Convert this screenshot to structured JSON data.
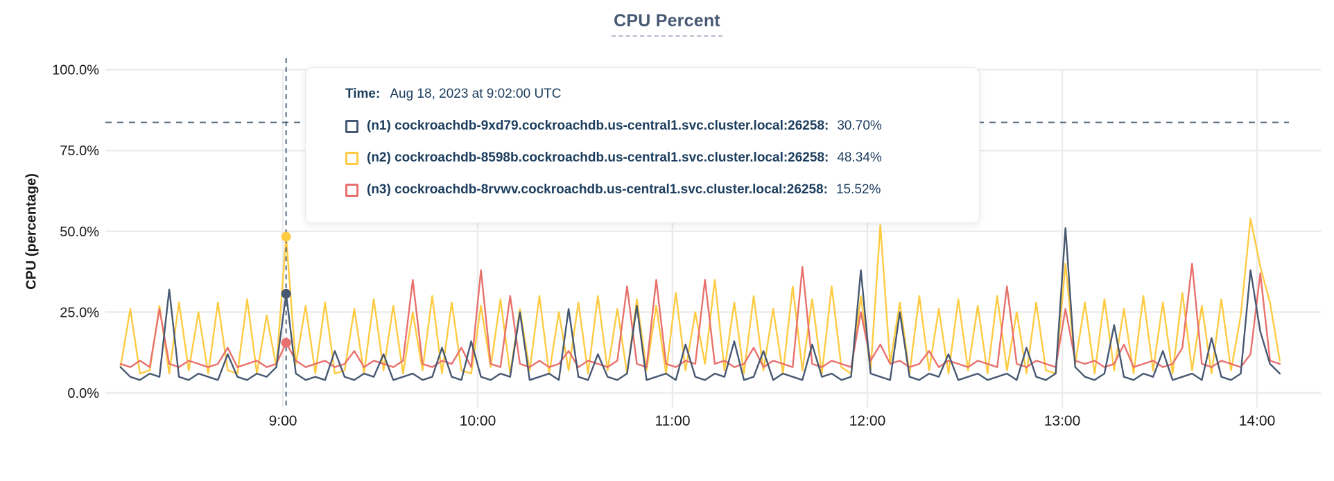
{
  "title": "CPU Percent",
  "y_axis_label": "CPU (percentage)",
  "tooltip": {
    "time_label": "Time:",
    "time_value": "Aug 18, 2023 at 9:02:00 UTC",
    "rows": [
      {
        "name": "(n1) cockroachdb-9xd79.cockroachdb.us-central1.svc.cluster.local:26258:",
        "value": "30.70%",
        "color": "#475872"
      },
      {
        "name": "(n2) cockroachdb-8598b.cockroachdb.us-central1.svc.cluster.local:26258:",
        "value": "48.34%",
        "color": "#FECB42"
      },
      {
        "name": "(n3) cockroachdb-8rvwv.cockroachdb.us-central1.svc.cluster.local:26258:",
        "value": "15.52%",
        "color": "#E8716D"
      }
    ]
  },
  "colors": {
    "grid": "#ececec",
    "tick_text": "#1a1a1a",
    "guide_dash": "#53687e",
    "title": "#475872"
  },
  "chart_data": {
    "type": "line",
    "title": "CPU Percent",
    "xlabel": "",
    "ylabel": "CPU (percentage)",
    "ylim": [
      0,
      100
    ],
    "grid": true,
    "legend_position": "tooltip-overlay",
    "x_start_time": "8:10",
    "x_end_time": "14:07",
    "x_step_minutes": 3,
    "x_ticks": [
      {
        "label": "9:00",
        "hour": 9
      },
      {
        "label": "10:00",
        "hour": 10
      },
      {
        "label": "11:00",
        "hour": 11
      },
      {
        "label": "12:00",
        "hour": 12
      },
      {
        "label": "13:00",
        "hour": 13
      },
      {
        "label": "14:00",
        "hour": 14
      }
    ],
    "y_ticks": [
      {
        "label": "100.0%",
        "value": 100
      },
      {
        "label": "75.0%",
        "value": 75
      },
      {
        "label": "50.0%",
        "value": 50
      },
      {
        "label": "25.0%",
        "value": 25
      },
      {
        "label": "0.0%",
        "value": 0
      }
    ],
    "dashed_guide_percent": 83.7,
    "hover": {
      "index": 17,
      "time": "Aug 18, 2023 at 9:02:00 UTC",
      "values": {
        "n1": 30.7,
        "n2": 48.34,
        "n3": 15.52
      }
    },
    "series": [
      {
        "name": "n2",
        "color": "#FECB42",
        "values": [
          8,
          26,
          6,
          7,
          27,
          6,
          28,
          7,
          25,
          6,
          28,
          7,
          6,
          29,
          6,
          24,
          8,
          48.34,
          9,
          27,
          6,
          28,
          6,
          7,
          26,
          6,
          29,
          7,
          27,
          6,
          25,
          7,
          30,
          6,
          28,
          7,
          6,
          27,
          8,
          29,
          6,
          26,
          7,
          30,
          6,
          25,
          7,
          28,
          6,
          30,
          7,
          26,
          6,
          29,
          7,
          27,
          6,
          31,
          7,
          25,
          9,
          35,
          7,
          28,
          6,
          30,
          7,
          26,
          6,
          33,
          7,
          29,
          6,
          33,
          8,
          6,
          30,
          7,
          52,
          9,
          28,
          6,
          30,
          7,
          26,
          6,
          29,
          7,
          27,
          6,
          30,
          7,
          25,
          6,
          28,
          7,
          6,
          40,
          9,
          28,
          6,
          29,
          7,
          26,
          6,
          30,
          7,
          28,
          6,
          31,
          7,
          27,
          6,
          29,
          7,
          24,
          54,
          39,
          28,
          10
        ]
      },
      {
        "name": "n3",
        "color": "#E8716D",
        "values": [
          9,
          8,
          10,
          8,
          26,
          9,
          8,
          10,
          9,
          8,
          9,
          14,
          8,
          9,
          10,
          8,
          9,
          15.52,
          10,
          8,
          9,
          10,
          8,
          9,
          13,
          8,
          10,
          9,
          8,
          10,
          35,
          9,
          8,
          10,
          9,
          14,
          8,
          38,
          9,
          8,
          30,
          9,
          8,
          10,
          8,
          9,
          13,
          8,
          10,
          9,
          8,
          10,
          33,
          9,
          8,
          35,
          9,
          8,
          10,
          9,
          35,
          9,
          10,
          8,
          9,
          14,
          8,
          10,
          9,
          8,
          39,
          9,
          8,
          10,
          9,
          8,
          25,
          10,
          15,
          9,
          10,
          8,
          9,
          13,
          8,
          10,
          9,
          8,
          10,
          9,
          8,
          33,
          9,
          8,
          10,
          9,
          8,
          26,
          10,
          9,
          10,
          8,
          9,
          15,
          8,
          9,
          10,
          8,
          9,
          14,
          40,
          9,
          8,
          10,
          9,
          8,
          12,
          37,
          10,
          9
        ]
      },
      {
        "name": "n1",
        "color": "#475872",
        "values": [
          8,
          5,
          4,
          6,
          5,
          32,
          5,
          4,
          6,
          5,
          4,
          12,
          5,
          4,
          6,
          5,
          8,
          30.7,
          6,
          4,
          5,
          4,
          13,
          5,
          4,
          6,
          5,
          12,
          4,
          5,
          6,
          4,
          5,
          14,
          5,
          4,
          16,
          5,
          4,
          6,
          5,
          25,
          4,
          5,
          6,
          4,
          26,
          5,
          4,
          12,
          5,
          4,
          6,
          27,
          4,
          5,
          6,
          4,
          15,
          5,
          4,
          6,
          5,
          16,
          4,
          5,
          13,
          4,
          6,
          5,
          4,
          15,
          5,
          6,
          4,
          5,
          38,
          6,
          5,
          4,
          25,
          5,
          4,
          6,
          5,
          12,
          4,
          5,
          6,
          4,
          5,
          6,
          4,
          14,
          5,
          4,
          6,
          51,
          8,
          5,
          4,
          6,
          21,
          5,
          4,
          6,
          5,
          13,
          4,
          5,
          6,
          4,
          17,
          5,
          4,
          6,
          38,
          19,
          9,
          6
        ]
      }
    ]
  }
}
